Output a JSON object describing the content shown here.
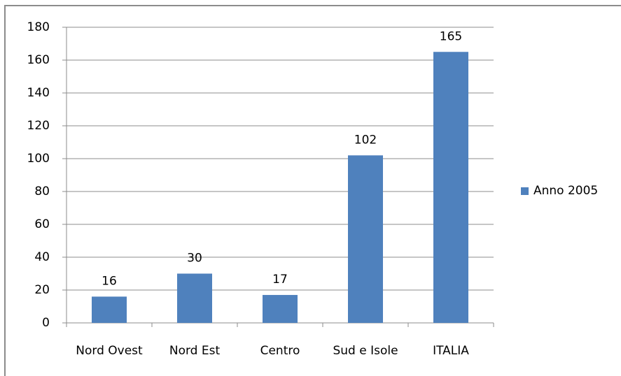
{
  "chart_data": {
    "type": "bar",
    "categories": [
      "Nord Ovest",
      "Nord Est",
      "Centro",
      "Sud e Isole",
      "ITALIA"
    ],
    "series": [
      {
        "name": "Anno 2005",
        "color": "#4f81bd",
        "values": [
          16,
          30,
          17,
          102,
          165
        ]
      }
    ],
    "ylim": [
      0,
      180
    ],
    "yticks": [
      0,
      20,
      40,
      60,
      80,
      100,
      120,
      140,
      160,
      180
    ],
    "grid": true,
    "legend": "right",
    "data_labels": true
  }
}
